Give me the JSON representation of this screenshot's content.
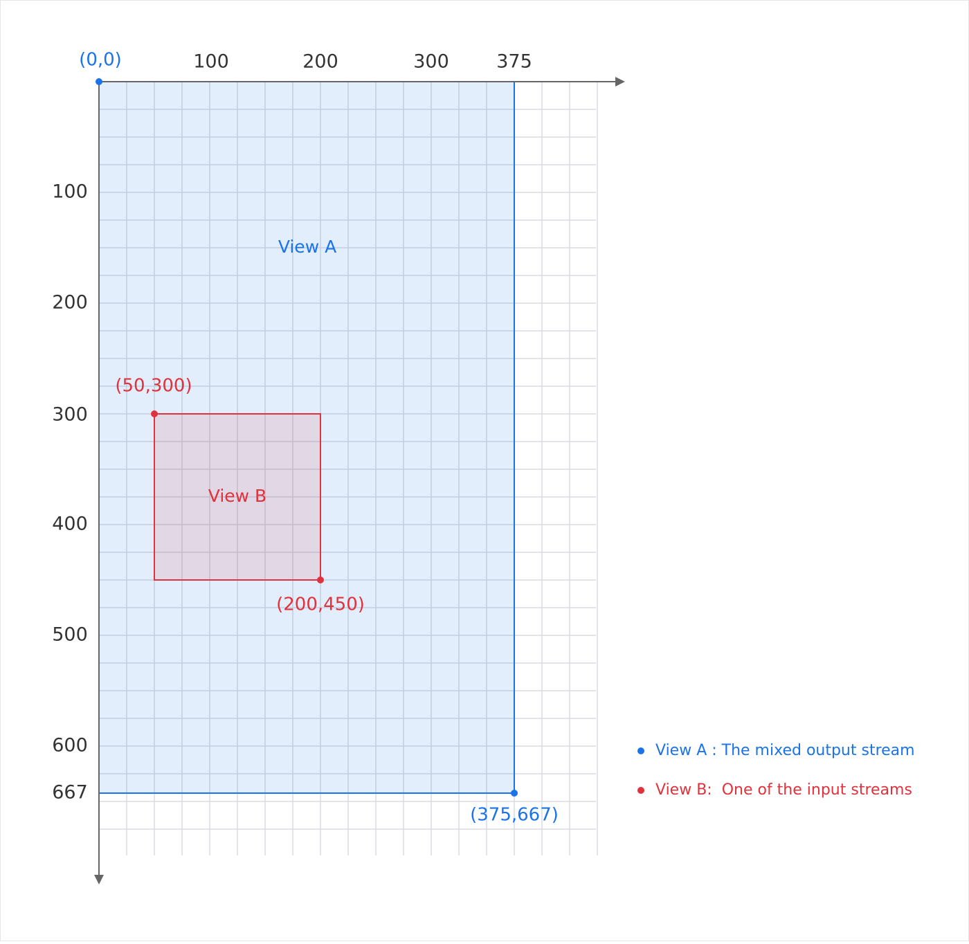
{
  "axes": {
    "x_ticks": [
      "100",
      "200",
      "300",
      "375"
    ],
    "y_ticks": [
      "100",
      "200",
      "300",
      "400",
      "500",
      "600",
      "667"
    ]
  },
  "points": {
    "origin": "(0,0)",
    "view_a_end": "(375,667)",
    "view_b_start": "(50,300)",
    "view_b_end": "(200,450)"
  },
  "views": [
    {
      "label": "View A"
    },
    {
      "label": "View B"
    }
  ],
  "legend": [
    {
      "text": "View A : The mixed output stream"
    },
    {
      "text": "View B:  One of the input streams"
    }
  ]
}
